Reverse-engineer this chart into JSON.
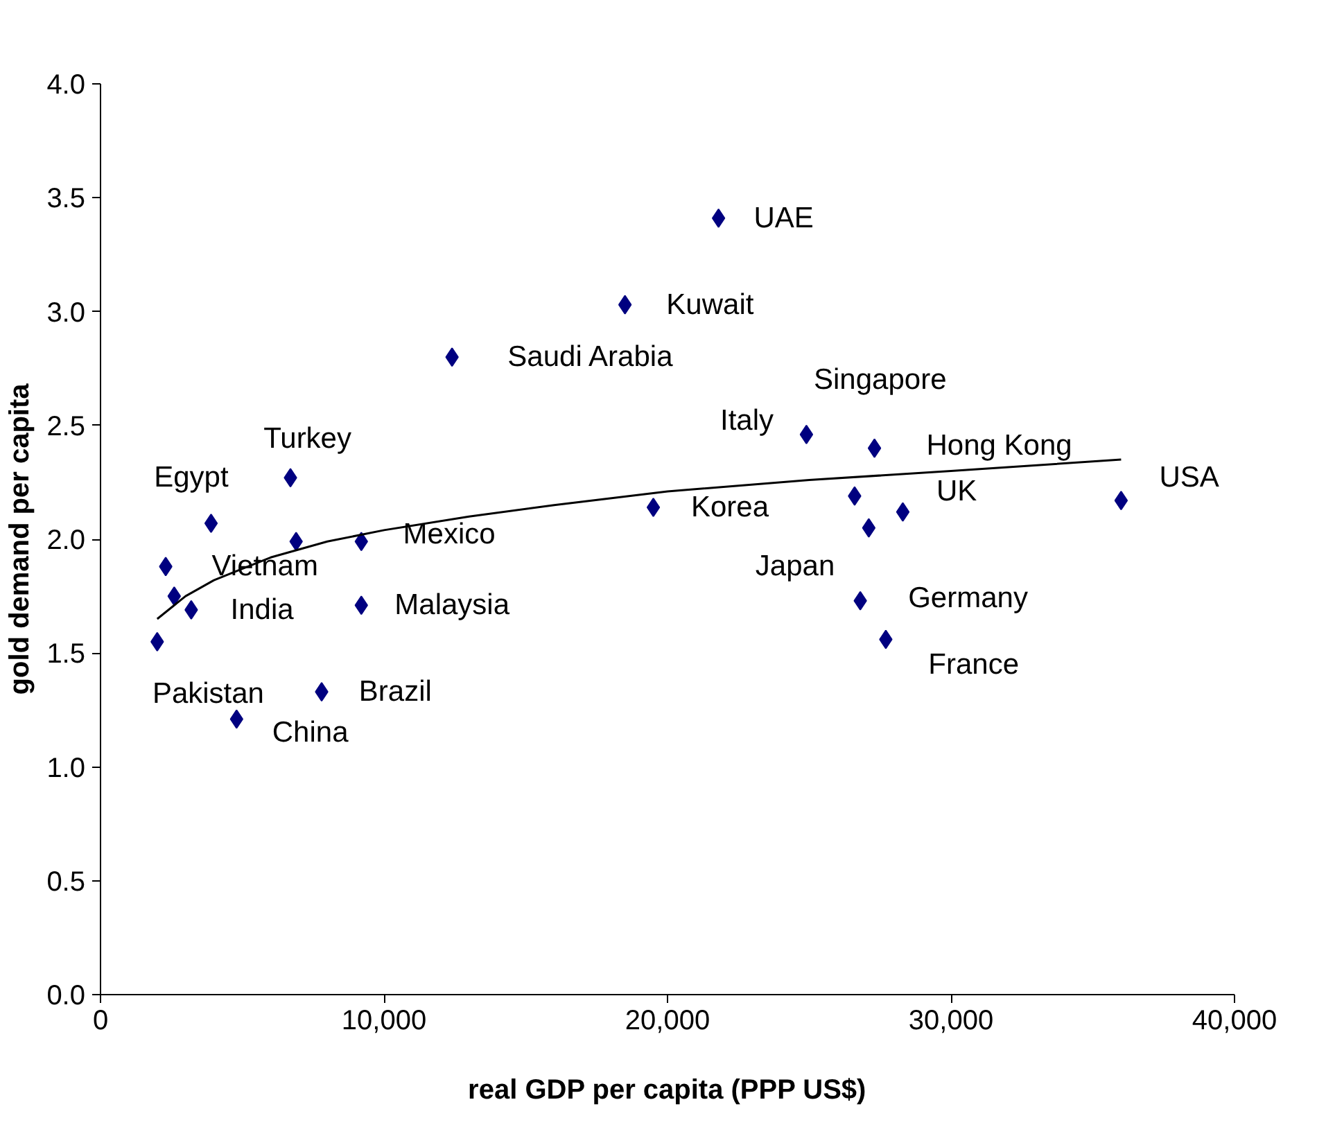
{
  "chart_data": {
    "type": "scatter",
    "xlabel": "real GDP per capita (PPP US$)",
    "ylabel": "gold demand per capita",
    "xlim": [
      0,
      40000
    ],
    "xticks": [
      0,
      {
        "value": 10000,
        "label": "10,000"
      },
      {
        "value": 20000,
        "label": "20,000"
      },
      {
        "value": 30000,
        "label": "30,000"
      },
      {
        "value": 40000,
        "label": "40,000"
      }
    ],
    "ylim": [
      0,
      4
    ],
    "yticks": [
      {
        "value": 0,
        "label": "0.0"
      },
      {
        "value": 0.5,
        "label": "0.5"
      },
      {
        "value": 1,
        "label": "1.0"
      },
      {
        "value": 1.5,
        "label": "1.5"
      },
      {
        "value": 2,
        "label": "2.0"
      },
      {
        "value": 2.5,
        "label": "2.5"
      },
      {
        "value": 3,
        "label": "3.0"
      },
      {
        "value": 3.5,
        "label": "3.5"
      },
      {
        "value": 4,
        "label": "4.0"
      }
    ],
    "grid": false,
    "series": [
      {
        "marker": "diamond",
        "color": "#000080",
        "x": [
          6700,
          3900,
          6900,
          9200,
          2300,
          2600,
          3200,
          2000,
          9200,
          7800,
          4800,
          21800,
          18500,
          12400,
          24900,
          27300,
          26600,
          28300,
          27100,
          26800,
          27700,
          19500,
          36000
        ],
        "values": [
          2.27,
          2.07,
          1.99,
          1.99,
          1.88,
          1.75,
          1.69,
          1.55,
          1.71,
          1.33,
          1.21,
          3.41,
          3.03,
          2.8,
          2.46,
          2.4,
          2.19,
          2.12,
          2.05,
          1.73,
          1.56,
          2.14,
          2.17
        ]
      },
      {
        "type": "line",
        "marker": "none",
        "color": "#000000",
        "x": [
          2000,
          3000,
          4000,
          5000,
          6000,
          8000,
          10000,
          13000,
          16000,
          20000,
          25000,
          30000,
          36000
        ],
        "values": [
          1.65,
          1.75,
          1.82,
          1.87,
          1.92,
          1.99,
          2.04,
          2.1,
          2.15,
          2.21,
          2.26,
          2.3,
          2.35
        ]
      }
    ],
    "annotations": [
      {
        "text": "Turkey",
        "x": 6700,
        "y": 2.27
      },
      {
        "text": "Egypt",
        "x": 3900,
        "y": 2.07
      },
      {
        "text": "Vietnam",
        "x": 2300,
        "y": 1.88
      },
      {
        "text": "India",
        "x": 3200,
        "y": 1.69
      },
      {
        "text": "Pakistan",
        "x": 2000,
        "y": 1.55
      },
      {
        "text": "China",
        "x": 4800,
        "y": 1.21
      },
      {
        "text": "Brazil",
        "x": 7800,
        "y": 1.33
      },
      {
        "text": "Malaysia",
        "x": 9200,
        "y": 1.71
      },
      {
        "text": "Mexico",
        "x": 9200,
        "y": 1.99
      },
      {
        "text": "Saudi Arabia",
        "x": 12400,
        "y": 2.8
      },
      {
        "text": "Kuwait",
        "x": 18500,
        "y": 3.03
      },
      {
        "text": "UAE",
        "x": 21800,
        "y": 3.41
      },
      {
        "text": "Singapore",
        "x": 27300,
        "y": 2.4
      },
      {
        "text": "Italy",
        "x": 24900,
        "y": 2.46
      },
      {
        "text": "Hong Kong",
        "x": 27300,
        "y": 2.4
      },
      {
        "text": "Korea",
        "x": 19500,
        "y": 2.14
      },
      {
        "text": "UK",
        "x": 28300,
        "y": 2.12
      },
      {
        "text": "USA",
        "x": 36000,
        "y": 2.17
      },
      {
        "text": "Japan",
        "x": 27100,
        "y": 2.05
      },
      {
        "text": "Germany",
        "x": 26800,
        "y": 1.73
      },
      {
        "text": "France",
        "x": 27700,
        "y": 1.56
      }
    ]
  }
}
